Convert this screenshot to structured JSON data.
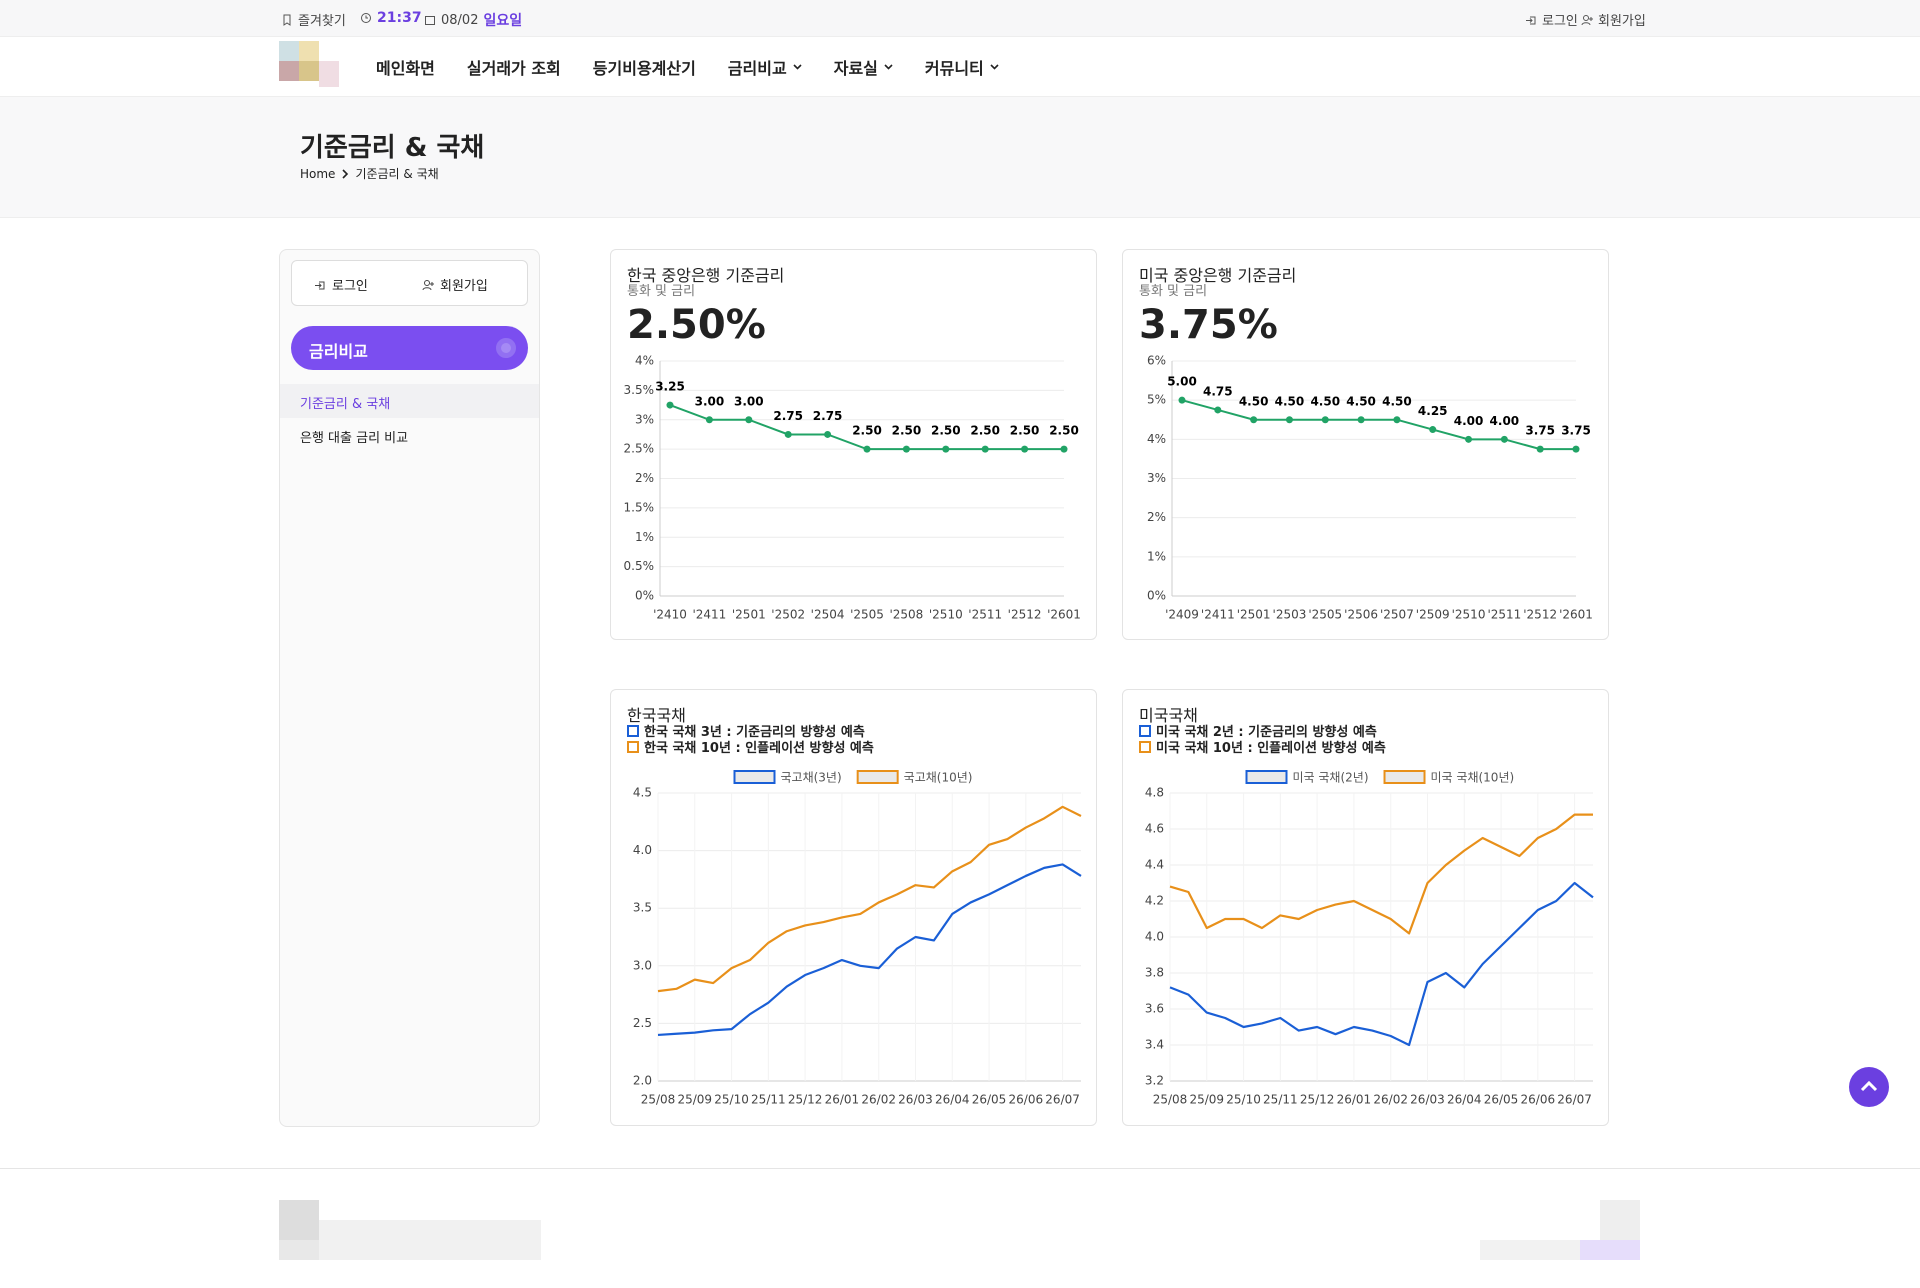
{
  "topbar": {
    "bookmark": "즐겨찾기",
    "time": "21:37",
    "date": "08/02",
    "weekday": "일요일",
    "login": "로그인",
    "signup": "회원가입"
  },
  "nav": [
    {
      "label": "메인화면"
    },
    {
      "label": "실거래가 조회"
    },
    {
      "label": "등기비용계산기"
    },
    {
      "label": "금리비교",
      "dropdown": true
    },
    {
      "label": "자료실",
      "dropdown": true
    },
    {
      "label": "커뮤니티",
      "dropdown": true
    }
  ],
  "page_header": {
    "title": "기준금리 & 국채",
    "breadcrumb": [
      "Home",
      "기준금리 & 국채"
    ]
  },
  "sidebar": {
    "login": "로그인",
    "signup": "회원가입",
    "section": "금리비교",
    "links": [
      "기준금리 & 국채",
      "은행 대출 금리 비교"
    ],
    "active": 0
  },
  "chart_data": [
    {
      "type": "line",
      "title": "한국 중앙은행 기준금리",
      "subtitle": "통화 및 금리",
      "headline": "2.50%",
      "color": "#21a366",
      "grid": true,
      "categories": [
        "'2410",
        "'2411",
        "'2501",
        "'2502",
        "'2504",
        "'2505",
        "'2508",
        "'2510",
        "'2511",
        "'2512",
        "'2601"
      ],
      "values": [
        3.25,
        3.0,
        3.0,
        2.75,
        2.75,
        2.5,
        2.5,
        2.5,
        2.5,
        2.5,
        2.5
      ],
      "value_labels": [
        "3.25",
        "3.00",
        "3.00",
        "2.75",
        "2.75",
        "2.50",
        "2.50",
        "2.50",
        "2.50",
        "2.50",
        "2.50"
      ],
      "ylim": [
        0,
        4
      ],
      "yticks": [
        {
          "value": 0,
          "label": "0%"
        },
        {
          "value": 0.5,
          "label": "0.5%"
        },
        {
          "value": 1,
          "label": "1%"
        },
        {
          "value": 1.5,
          "label": "1.5%"
        },
        {
          "value": 2,
          "label": "2%"
        },
        {
          "value": 2.5,
          "label": "2.5%"
        },
        {
          "value": 3,
          "label": "3%"
        },
        {
          "value": 3.5,
          "label": "3.5%"
        },
        {
          "value": 4,
          "label": "4%"
        }
      ]
    },
    {
      "type": "line",
      "title": "미국 중앙은행 기준금리",
      "subtitle": "통화 및 금리",
      "headline": "3.75%",
      "color": "#21a366",
      "grid": true,
      "categories": [
        "'2409",
        "'2411",
        "'2501",
        "'2503",
        "'2505",
        "'2506",
        "'2507",
        "'2509",
        "'2510",
        "'2511",
        "'2512",
        "'2601"
      ],
      "values": [
        5.0,
        4.75,
        4.5,
        4.5,
        4.5,
        4.5,
        4.5,
        4.25,
        4.0,
        4.0,
        3.75,
        3.75
      ],
      "value_labels": [
        "5.00",
        "4.75",
        "4.50",
        "4.50",
        "4.50",
        "4.50",
        "4.50",
        "4.25",
        "4.00",
        "4.00",
        "3.75",
        "3.75"
      ],
      "ylim": [
        0,
        6
      ],
      "yticks": [
        {
          "value": 0,
          "label": "0%"
        },
        {
          "value": 1,
          "label": "1%"
        },
        {
          "value": 2,
          "label": "2%"
        },
        {
          "value": 3,
          "label": "3%"
        },
        {
          "value": 4,
          "label": "4%"
        },
        {
          "value": 5,
          "label": "5%"
        },
        {
          "value": 6,
          "label": "6%"
        }
      ]
    },
    {
      "type": "line",
      "title": "한국국채",
      "annotations": [
        "한국 국채 3년 : 기준금리의 방향성 예측",
        "한국 국채 10년 : 인플레이션 방향성 예측"
      ],
      "grid": true,
      "x": [
        0,
        0.5,
        1,
        1.5,
        2,
        2.5,
        3,
        3.5,
        4,
        4.5,
        5,
        5.5,
        6,
        6.5,
        7,
        7.5,
        8,
        8.5,
        9,
        9.5,
        10,
        10.5,
        11,
        11.5
      ],
      "series": [
        {
          "name": "국고채(3년)",
          "color": "#1a5fd6",
          "values": [
            2.4,
            2.41,
            2.42,
            2.44,
            2.45,
            2.58,
            2.68,
            2.82,
            2.92,
            2.98,
            3.05,
            3.0,
            2.98,
            3.15,
            3.25,
            3.22,
            3.45,
            3.55,
            3.62,
            3.7,
            3.78,
            3.85,
            3.88,
            3.78
          ]
        },
        {
          "name": "국고채(10년)",
          "color": "#e8901a",
          "values": [
            2.78,
            2.8,
            2.88,
            2.85,
            2.98,
            3.05,
            3.2,
            3.3,
            3.35,
            3.38,
            3.42,
            3.45,
            3.55,
            3.62,
            3.7,
            3.68,
            3.82,
            3.9,
            4.05,
            4.1,
            4.2,
            4.28,
            4.38,
            4.3
          ]
        }
      ],
      "xlim": [
        0,
        11.5
      ],
      "xticks": [
        {
          "value": 0,
          "label": "25/08"
        },
        {
          "value": 1,
          "label": "25/09"
        },
        {
          "value": 2,
          "label": "25/10"
        },
        {
          "value": 3,
          "label": "25/11"
        },
        {
          "value": 4,
          "label": "25/12"
        },
        {
          "value": 5,
          "label": "26/01"
        },
        {
          "value": 6,
          "label": "26/02"
        },
        {
          "value": 7,
          "label": "26/03"
        },
        {
          "value": 8,
          "label": "26/04"
        },
        {
          "value": 9,
          "label": "26/05"
        },
        {
          "value": 10,
          "label": "26/06"
        },
        {
          "value": 11,
          "label": "26/07"
        }
      ],
      "ylim": [
        2,
        4.5
      ],
      "yticks": [
        {
          "value": 2,
          "label": "2.0"
        },
        2.5,
        {
          "value": 3,
          "label": "3.0"
        },
        3.5,
        {
          "value": 4,
          "label": "4.0"
        },
        4.5
      ]
    },
    {
      "type": "line",
      "title": "미국국채",
      "annotations": [
        "미국 국채 2년 : 기준금리의 방향성 예측",
        "미국 국채 10년 : 인플레이션 방향성 예측"
      ],
      "grid": true,
      "x": [
        0,
        0.5,
        1,
        1.5,
        2,
        2.5,
        3,
        3.5,
        4,
        4.5,
        5,
        5.5,
        6,
        6.5,
        7,
        7.5,
        8,
        8.5,
        9,
        9.5,
        10,
        10.5,
        11,
        11.5
      ],
      "series": [
        {
          "name": "미국 국채(2년)",
          "color": "#1a5fd6",
          "values": [
            3.72,
            3.68,
            3.58,
            3.55,
            3.5,
            3.52,
            3.55,
            3.48,
            3.5,
            3.46,
            3.5,
            3.48,
            3.45,
            3.4,
            3.75,
            3.8,
            3.72,
            3.85,
            3.95,
            4.05,
            4.15,
            4.2,
            4.3,
            4.22
          ]
        },
        {
          "name": "미국 국채(10년)",
          "color": "#e8901a",
          "values": [
            4.28,
            4.25,
            4.05,
            4.1,
            4.1,
            4.05,
            4.12,
            4.1,
            4.15,
            4.18,
            4.2,
            4.15,
            4.1,
            4.02,
            4.3,
            4.4,
            4.48,
            4.55,
            4.5,
            4.45,
            4.55,
            4.6,
            4.68,
            4.68
          ]
        }
      ],
      "xlim": [
        0,
        11.5
      ],
      "xticks": [
        {
          "value": 0,
          "label": "25/08"
        },
        {
          "value": 1,
          "label": "25/09"
        },
        {
          "value": 2,
          "label": "25/10"
        },
        {
          "value": 3,
          "label": "25/11"
        },
        {
          "value": 4,
          "label": "25/12"
        },
        {
          "value": 5,
          "label": "26/01"
        },
        {
          "value": 6,
          "label": "26/02"
        },
        {
          "value": 7,
          "label": "26/03"
        },
        {
          "value": 8,
          "label": "26/04"
        },
        {
          "value": 9,
          "label": "26/05"
        },
        {
          "value": 10,
          "label": "26/06"
        },
        {
          "value": 11,
          "label": "26/07"
        }
      ],
      "ylim": [
        3.2,
        4.8
      ],
      "yticks": [
        3.2,
        3.4,
        3.6,
        3.8,
        {
          "value": 4,
          "label": "4.0"
        },
        4.2,
        4.4,
        4.6,
        4.8
      ]
    }
  ]
}
